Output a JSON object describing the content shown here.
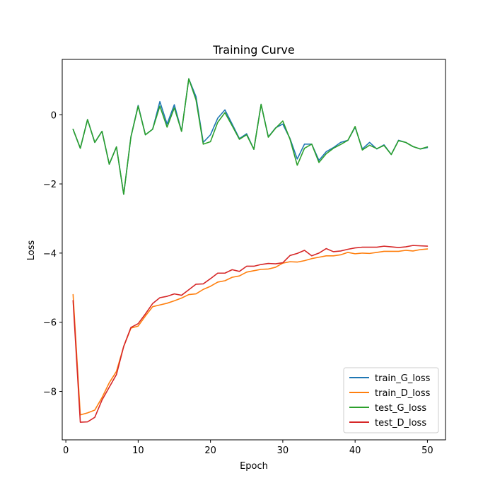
{
  "chart_data": {
    "type": "line",
    "title": "Training Curve",
    "xlabel": "Epoch",
    "ylabel": "Loss",
    "xlim": [
      -0.5,
      52.5
    ],
    "ylim": [
      -9.4,
      1.6
    ],
    "xticks": [
      0,
      10,
      20,
      30,
      40,
      50
    ],
    "yticks": [
      0,
      -2,
      -4,
      -6,
      -8
    ],
    "legend": "lower-right",
    "grid": false,
    "x": [
      1,
      2,
      3,
      4,
      5,
      6,
      7,
      8,
      9,
      10,
      11,
      12,
      13,
      14,
      15,
      16,
      17,
      18,
      19,
      20,
      21,
      22,
      23,
      24,
      25,
      26,
      27,
      28,
      29,
      30,
      31,
      32,
      33,
      34,
      35,
      36,
      37,
      38,
      39,
      40,
      41,
      42,
      43,
      44,
      45,
      46,
      47,
      48,
      49,
      50
    ],
    "series": [
      {
        "name": "train_G_loss",
        "color": "#1f77b4",
        "values": [
          -0.42,
          -0.97,
          -0.14,
          -0.8,
          -0.48,
          -1.43,
          -0.93,
          -2.3,
          -0.64,
          0.27,
          -0.58,
          -0.42,
          0.38,
          -0.27,
          0.29,
          -0.48,
          1.04,
          0.52,
          -0.8,
          -0.58,
          -0.1,
          0.14,
          -0.27,
          -0.69,
          -0.55,
          -1.0,
          0.3,
          -0.64,
          -0.38,
          -0.27,
          -0.69,
          -1.28,
          -0.85,
          -0.85,
          -1.32,
          -1.07,
          -0.95,
          -0.8,
          -0.74,
          -0.36,
          -0.99,
          -0.8,
          -0.99,
          -0.87,
          -1.15,
          -0.74,
          -0.8,
          -0.92,
          -0.99,
          -0.95
        ]
      },
      {
        "name": "train_D_loss",
        "color": "#ff7f0e",
        "values": [
          -5.2,
          -8.68,
          -8.62,
          -8.54,
          -8.18,
          -7.75,
          -7.42,
          -6.7,
          -6.17,
          -6.11,
          -5.82,
          -5.55,
          -5.5,
          -5.45,
          -5.38,
          -5.3,
          -5.2,
          -5.18,
          -5.05,
          -4.96,
          -4.84,
          -4.8,
          -4.7,
          -4.66,
          -4.55,
          -4.51,
          -4.47,
          -4.46,
          -4.41,
          -4.29,
          -4.25,
          -4.26,
          -4.22,
          -4.16,
          -4.12,
          -4.08,
          -4.08,
          -4.05,
          -3.98,
          -4.02,
          -4.0,
          -4.01,
          -3.98,
          -3.95,
          -3.95,
          -3.95,
          -3.92,
          -3.94,
          -3.9,
          -3.88
        ]
      },
      {
        "name": "test_G_loss",
        "color": "#2ca02c",
        "values": [
          -0.42,
          -0.97,
          -0.14,
          -0.8,
          -0.48,
          -1.43,
          -0.93,
          -2.3,
          -0.64,
          0.25,
          -0.58,
          -0.42,
          0.25,
          -0.36,
          0.2,
          -0.48,
          1.04,
          0.43,
          -0.85,
          -0.78,
          -0.22,
          0.06,
          -0.32,
          -0.71,
          -0.58,
          -1.0,
          0.3,
          -0.65,
          -0.39,
          -0.18,
          -0.71,
          -1.46,
          -0.97,
          -0.85,
          -1.38,
          -1.13,
          -0.97,
          -0.86,
          -0.74,
          -0.34,
          -1.02,
          -0.88,
          -0.98,
          -0.89,
          -1.15,
          -0.75,
          -0.8,
          -0.92,
          -0.99,
          -0.93
        ]
      },
      {
        "name": "test_D_loss",
        "color": "#d62728",
        "values": [
          -5.37,
          -8.89,
          -8.88,
          -8.75,
          -8.25,
          -7.88,
          -7.51,
          -6.7,
          -6.15,
          -6.04,
          -5.76,
          -5.46,
          -5.29,
          -5.25,
          -5.18,
          -5.22,
          -5.06,
          -4.9,
          -4.89,
          -4.74,
          -4.58,
          -4.58,
          -4.48,
          -4.53,
          -4.38,
          -4.38,
          -4.33,
          -4.3,
          -4.31,
          -4.28,
          -4.07,
          -4.01,
          -3.92,
          -4.08,
          -4.0,
          -3.87,
          -3.96,
          -3.94,
          -3.89,
          -3.85,
          -3.83,
          -3.83,
          -3.83,
          -3.8,
          -3.82,
          -3.84,
          -3.82,
          -3.78,
          -3.79,
          -3.8
        ]
      }
    ]
  }
}
